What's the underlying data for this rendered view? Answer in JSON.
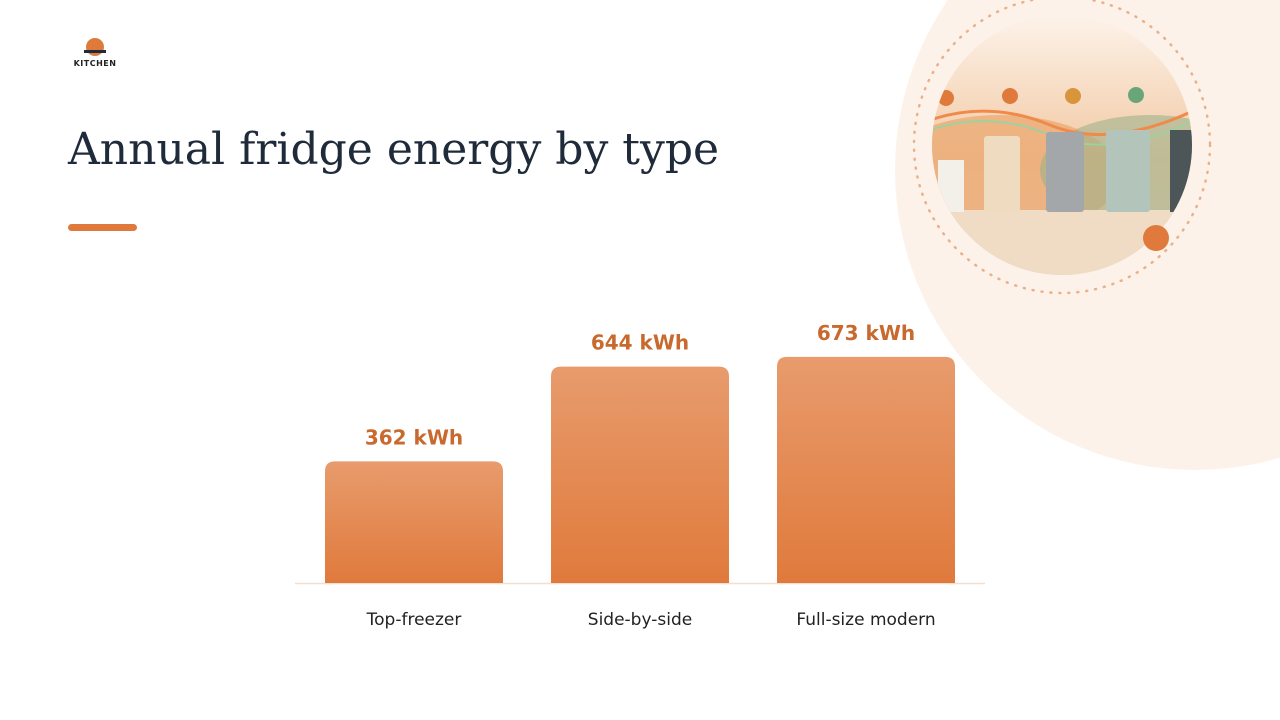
{
  "header": {
    "logo": "KITCHEN"
  },
  "chart_data": {
    "type": "bar",
    "title": "Annual fridge energy by type",
    "categories": [
      "Top-freezer",
      "Side-by-side",
      "Full-size modern"
    ],
    "values": [
      362,
      644,
      673
    ],
    "value_labels": [
      "362 kWh",
      "644 kWh",
      "673 kWh"
    ],
    "color": "#e07a3c"
  }
}
